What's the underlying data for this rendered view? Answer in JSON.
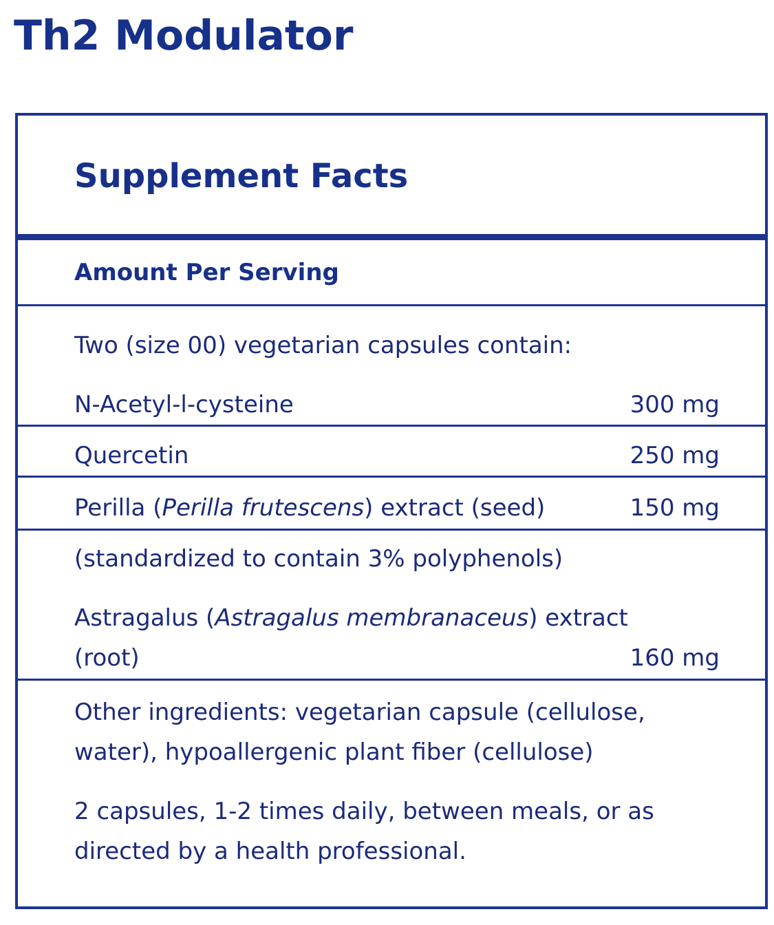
{
  "product": {
    "title": "Th2 Modulator"
  },
  "facts": {
    "heading": "Supplement Facts",
    "amount_per_serving": "Amount Per Serving",
    "serving_intro": "Two (size 00) vegetarian capsules contain:",
    "ingredients": [
      {
        "name": "N-Acetyl-l-cysteine",
        "amount": "300 mg"
      },
      {
        "name": "Quercetin",
        "amount": "250 mg"
      },
      {
        "name_prefix": "Perilla (",
        "name_latin": "Perilla frutescens",
        "name_suffix": ") extract (seed)",
        "amount": "150 mg"
      },
      {
        "note": "(standardized to contain 3% polyphenols)"
      },
      {
        "name_prefix": "Astragalus (",
        "name_latin": "Astragalus membranaceus",
        "name_suffix": ") extract",
        "name_line2": "(root)",
        "amount": "160 mg"
      }
    ],
    "other_ingredients": "Other ingredients: vegetarian capsule (cellulose, water), hypoallergenic plant fiber (cellulose)",
    "directions": "2 capsules, 1-2 times daily, between meals, or as directed by a health professional."
  },
  "colors": {
    "brand_navy": "#17308a",
    "rule": "#1d3490",
    "text": "#1b2a7b"
  }
}
